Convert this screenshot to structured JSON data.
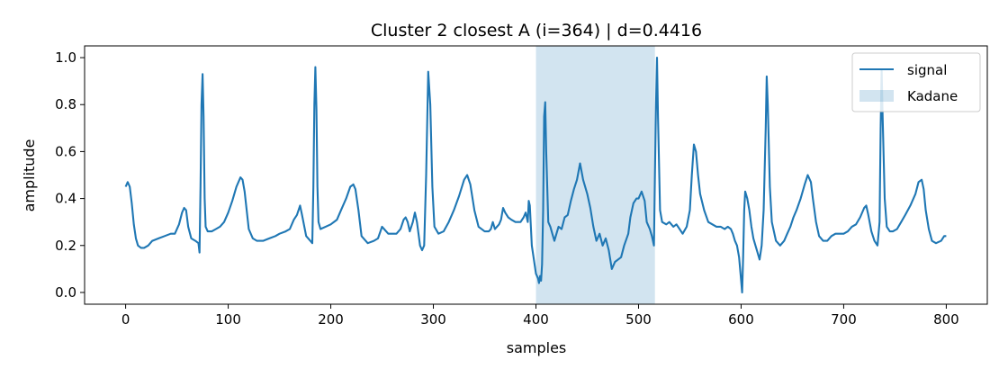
{
  "chart_data": {
    "type": "line",
    "title": "Cluster 2 closest A (i=364) | d=0.4416",
    "xlabel": "samples",
    "ylabel": "amplitude",
    "xlim": [
      -40,
      840
    ],
    "ylim": [
      -0.05,
      1.05
    ],
    "x_ticks": [
      0,
      100,
      200,
      300,
      400,
      500,
      600,
      700,
      800
    ],
    "y_ticks": [
      0.0,
      0.2,
      0.4,
      0.6,
      0.8,
      1.0
    ],
    "x_tick_labels": [
      "0",
      "100",
      "200",
      "300",
      "400",
      "500",
      "600",
      "700",
      "800"
    ],
    "y_tick_labels": [
      "0.0",
      "0.2",
      "0.4",
      "0.6",
      "0.8",
      "1.0"
    ],
    "grid": false,
    "legend": {
      "placement": "top-right",
      "entries": [
        "signal",
        "Kadane"
      ]
    },
    "kadane_span": [
      400,
      516
    ],
    "colors": {
      "signal": "#1f77b4",
      "kadane": "#1f77b4"
    },
    "series": [
      {
        "name": "signal",
        "points": [
          [
            0,
            0.45
          ],
          [
            2,
            0.47
          ],
          [
            4,
            0.45
          ],
          [
            6,
            0.38
          ],
          [
            8,
            0.29
          ],
          [
            10,
            0.23
          ],
          [
            12,
            0.2
          ],
          [
            15,
            0.19
          ],
          [
            18,
            0.19
          ],
          [
            22,
            0.2
          ],
          [
            26,
            0.22
          ],
          [
            32,
            0.23
          ],
          [
            38,
            0.24
          ],
          [
            44,
            0.25
          ],
          [
            48,
            0.25
          ],
          [
            52,
            0.29
          ],
          [
            55,
            0.34
          ],
          [
            57,
            0.36
          ],
          [
            59,
            0.35
          ],
          [
            61,
            0.28
          ],
          [
            64,
            0.23
          ],
          [
            68,
            0.22
          ],
          [
            71,
            0.21
          ],
          [
            72,
            0.17
          ],
          [
            73,
            0.45
          ],
          [
            74,
            0.8
          ],
          [
            75,
            0.93
          ],
          [
            76,
            0.75
          ],
          [
            77,
            0.4
          ],
          [
            78,
            0.28
          ],
          [
            80,
            0.26
          ],
          [
            84,
            0.26
          ],
          [
            88,
            0.27
          ],
          [
            92,
            0.28
          ],
          [
            96,
            0.3
          ],
          [
            100,
            0.34
          ],
          [
            104,
            0.39
          ],
          [
            108,
            0.45
          ],
          [
            112,
            0.49
          ],
          [
            114,
            0.48
          ],
          [
            116,
            0.43
          ],
          [
            118,
            0.35
          ],
          [
            120,
            0.27
          ],
          [
            124,
            0.23
          ],
          [
            128,
            0.22
          ],
          [
            134,
            0.22
          ],
          [
            140,
            0.23
          ],
          [
            146,
            0.24
          ],
          [
            150,
            0.25
          ],
          [
            156,
            0.26
          ],
          [
            160,
            0.27
          ],
          [
            164,
            0.31
          ],
          [
            167,
            0.33
          ],
          [
            170,
            0.37
          ],
          [
            172,
            0.33
          ],
          [
            176,
            0.24
          ],
          [
            180,
            0.22
          ],
          [
            182,
            0.21
          ],
          [
            183,
            0.45
          ],
          [
            184,
            0.8
          ],
          [
            185,
            0.96
          ],
          [
            186,
            0.78
          ],
          [
            187,
            0.45
          ],
          [
            188,
            0.3
          ],
          [
            190,
            0.27
          ],
          [
            195,
            0.28
          ],
          [
            200,
            0.29
          ],
          [
            206,
            0.31
          ],
          [
            210,
            0.35
          ],
          [
            215,
            0.4
          ],
          [
            219,
            0.45
          ],
          [
            222,
            0.46
          ],
          [
            224,
            0.44
          ],
          [
            227,
            0.35
          ],
          [
            230,
            0.24
          ],
          [
            236,
            0.21
          ],
          [
            242,
            0.22
          ],
          [
            246,
            0.23
          ],
          [
            250,
            0.28
          ],
          [
            252,
            0.27
          ],
          [
            256,
            0.25
          ],
          [
            260,
            0.25
          ],
          [
            264,
            0.25
          ],
          [
            268,
            0.27
          ],
          [
            271,
            0.31
          ],
          [
            273,
            0.32
          ],
          [
            275,
            0.3
          ],
          [
            277,
            0.26
          ],
          [
            280,
            0.3
          ],
          [
            282,
            0.34
          ],
          [
            284,
            0.3
          ],
          [
            287,
            0.2
          ],
          [
            289,
            0.18
          ],
          [
            291,
            0.2
          ],
          [
            293,
            0.5
          ],
          [
            295,
            0.94
          ],
          [
            297,
            0.8
          ],
          [
            299,
            0.45
          ],
          [
            301,
            0.28
          ],
          [
            305,
            0.25
          ],
          [
            310,
            0.26
          ],
          [
            315,
            0.3
          ],
          [
            320,
            0.35
          ],
          [
            325,
            0.41
          ],
          [
            330,
            0.48
          ],
          [
            333,
            0.5
          ],
          [
            336,
            0.46
          ],
          [
            340,
            0.35
          ],
          [
            344,
            0.28
          ],
          [
            350,
            0.26
          ],
          [
            354,
            0.26
          ],
          [
            356,
            0.27
          ],
          [
            358,
            0.3
          ],
          [
            360,
            0.27
          ],
          [
            364,
            0.29
          ],
          [
            366,
            0.31
          ],
          [
            368,
            0.36
          ],
          [
            370,
            0.34
          ],
          [
            373,
            0.32
          ],
          [
            376,
            0.31
          ],
          [
            380,
            0.3
          ],
          [
            385,
            0.3
          ],
          [
            388,
            0.32
          ],
          [
            390,
            0.34
          ],
          [
            392,
            0.3
          ],
          [
            393,
            0.39
          ],
          [
            394,
            0.37
          ],
          [
            396,
            0.2
          ],
          [
            398,
            0.14
          ],
          [
            400,
            0.08
          ],
          [
            402,
            0.06
          ],
          [
            403,
            0.04
          ],
          [
            404,
            0.07
          ],
          [
            405,
            0.05
          ],
          [
            406,
            0.12
          ],
          [
            407,
            0.35
          ],
          [
            408,
            0.75
          ],
          [
            409,
            0.81
          ],
          [
            410,
            0.6
          ],
          [
            412,
            0.3
          ],
          [
            414,
            0.28
          ],
          [
            416,
            0.25
          ],
          [
            418,
            0.22
          ],
          [
            420,
            0.25
          ],
          [
            422,
            0.28
          ],
          [
            425,
            0.27
          ],
          [
            428,
            0.32
          ],
          [
            431,
            0.33
          ],
          [
            434,
            0.39
          ],
          [
            437,
            0.44
          ],
          [
            440,
            0.48
          ],
          [
            443,
            0.55
          ],
          [
            446,
            0.48
          ],
          [
            450,
            0.42
          ],
          [
            453,
            0.36
          ],
          [
            456,
            0.28
          ],
          [
            459,
            0.22
          ],
          [
            462,
            0.25
          ],
          [
            465,
            0.2
          ],
          [
            468,
            0.23
          ],
          [
            471,
            0.18
          ],
          [
            474,
            0.1
          ],
          [
            477,
            0.13
          ],
          [
            480,
            0.14
          ],
          [
            483,
            0.15
          ],
          [
            486,
            0.2
          ],
          [
            490,
            0.25
          ],
          [
            492,
            0.32
          ],
          [
            495,
            0.38
          ],
          [
            498,
            0.4
          ],
          [
            500,
            0.4
          ],
          [
            503,
            0.43
          ],
          [
            506,
            0.39
          ],
          [
            508,
            0.3
          ],
          [
            511,
            0.27
          ],
          [
            513,
            0.24
          ],
          [
            515,
            0.2
          ],
          [
            516,
            0.5
          ],
          [
            517,
            0.8
          ],
          [
            518,
            1.0
          ],
          [
            519,
            0.75
          ],
          [
            521,
            0.35
          ],
          [
            523,
            0.3
          ],
          [
            527,
            0.29
          ],
          [
            530,
            0.3
          ],
          [
            534,
            0.28
          ],
          [
            537,
            0.29
          ],
          [
            540,
            0.27
          ],
          [
            543,
            0.25
          ],
          [
            547,
            0.28
          ],
          [
            550,
            0.35
          ],
          [
            552,
            0.5
          ],
          [
            554,
            0.63
          ],
          [
            556,
            0.6
          ],
          [
            558,
            0.5
          ],
          [
            560,
            0.42
          ],
          [
            564,
            0.35
          ],
          [
            568,
            0.3
          ],
          [
            572,
            0.29
          ],
          [
            576,
            0.28
          ],
          [
            580,
            0.28
          ],
          [
            584,
            0.27
          ],
          [
            587,
            0.28
          ],
          [
            590,
            0.27
          ],
          [
            592,
            0.25
          ],
          [
            594,
            0.22
          ],
          [
            596,
            0.2
          ],
          [
            598,
            0.15
          ],
          [
            600,
            0.05
          ],
          [
            601,
            0.0
          ],
          [
            602,
            0.15
          ],
          [
            603,
            0.35
          ],
          [
            604,
            0.43
          ],
          [
            606,
            0.4
          ],
          [
            608,
            0.35
          ],
          [
            610,
            0.28
          ],
          [
            612,
            0.23
          ],
          [
            614,
            0.2
          ],
          [
            616,
            0.17
          ],
          [
            618,
            0.14
          ],
          [
            620,
            0.2
          ],
          [
            622,
            0.35
          ],
          [
            624,
            0.7
          ],
          [
            625,
            0.92
          ],
          [
            626,
            0.8
          ],
          [
            628,
            0.45
          ],
          [
            630,
            0.3
          ],
          [
            634,
            0.22
          ],
          [
            638,
            0.2
          ],
          [
            642,
            0.22
          ],
          [
            645,
            0.25
          ],
          [
            648,
            0.28
          ],
          [
            651,
            0.32
          ],
          [
            654,
            0.35
          ],
          [
            658,
            0.4
          ],
          [
            662,
            0.46
          ],
          [
            665,
            0.5
          ],
          [
            668,
            0.47
          ],
          [
            670,
            0.4
          ],
          [
            673,
            0.3
          ],
          [
            676,
            0.24
          ],
          [
            680,
            0.22
          ],
          [
            684,
            0.22
          ],
          [
            688,
            0.24
          ],
          [
            692,
            0.25
          ],
          [
            696,
            0.25
          ],
          [
            700,
            0.25
          ],
          [
            704,
            0.26
          ],
          [
            708,
            0.28
          ],
          [
            712,
            0.29
          ],
          [
            716,
            0.32
          ],
          [
            720,
            0.36
          ],
          [
            722,
            0.37
          ],
          [
            724,
            0.33
          ],
          [
            727,
            0.26
          ],
          [
            730,
            0.22
          ],
          [
            733,
            0.2
          ],
          [
            735,
            0.3
          ],
          [
            736,
            0.7
          ],
          [
            737,
            0.95
          ],
          [
            738,
            0.75
          ],
          [
            740,
            0.4
          ],
          [
            742,
            0.28
          ],
          [
            745,
            0.26
          ],
          [
            748,
            0.26
          ],
          [
            752,
            0.27
          ],
          [
            756,
            0.3
          ],
          [
            760,
            0.33
          ],
          [
            765,
            0.37
          ],
          [
            770,
            0.42
          ],
          [
            773,
            0.47
          ],
          [
            776,
            0.48
          ],
          [
            778,
            0.44
          ],
          [
            780,
            0.35
          ],
          [
            783,
            0.27
          ],
          [
            786,
            0.22
          ],
          [
            790,
            0.21
          ],
          [
            795,
            0.22
          ],
          [
            798,
            0.24
          ],
          [
            800,
            0.24
          ]
        ]
      }
    ]
  }
}
